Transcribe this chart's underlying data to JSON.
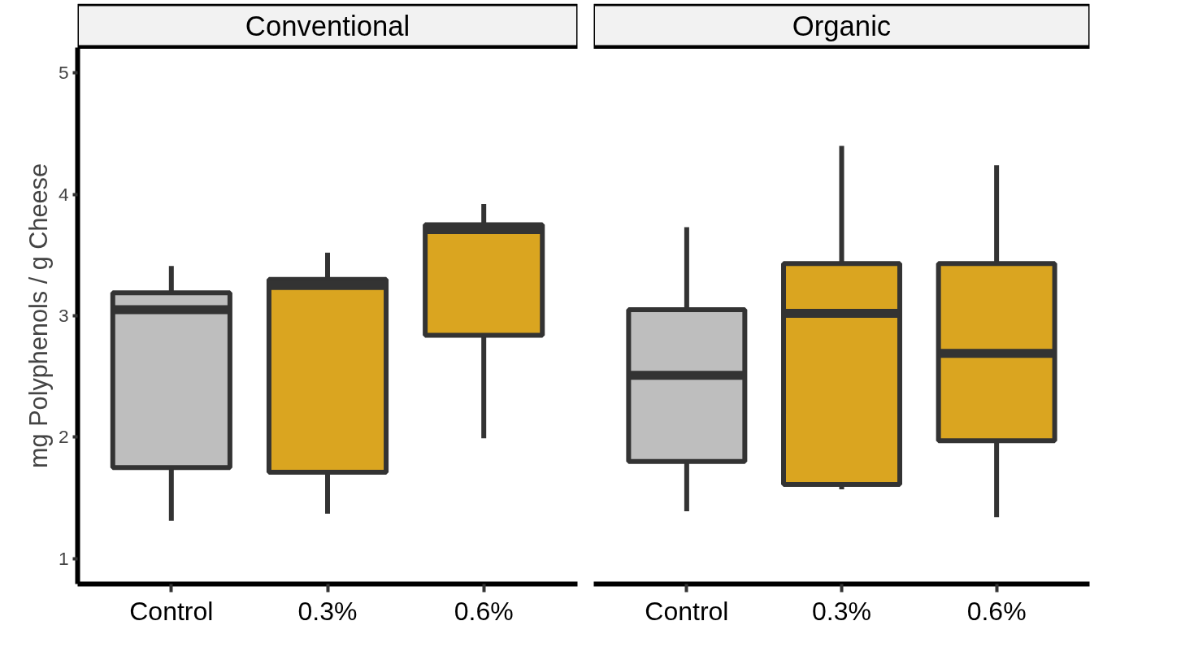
{
  "chart_data": [
    {
      "type": "box",
      "title": "Conventional",
      "ylabel": "mg Polyphenols / g Cheese",
      "categories": [
        "Control",
        "0.3%",
        "0.6%"
      ],
      "colors": [
        "#bebebe",
        "#daa520",
        "#daa520"
      ],
      "boxes": [
        {
          "low": 1.31,
          "q1": 1.75,
          "median": 3.05,
          "q3": 3.19,
          "high": 3.41
        },
        {
          "low": 1.37,
          "q1": 1.71,
          "median": 3.25,
          "q3": 3.3,
          "high": 3.52
        },
        {
          "low": 1.99,
          "q1": 2.84,
          "median": 3.71,
          "q3": 3.75,
          "high": 3.92
        }
      ],
      "ylim": [
        0.79,
        5.21
      ],
      "yticks": [
        1,
        2,
        3,
        4,
        5
      ],
      "grid": false
    },
    {
      "type": "box",
      "title": "Organic",
      "categories": [
        "Control",
        "0.3%",
        "0.6%"
      ],
      "colors": [
        "#bebebe",
        "#daa520",
        "#daa520"
      ],
      "boxes": [
        {
          "low": 1.39,
          "q1": 1.8,
          "median": 2.51,
          "q3": 3.05,
          "high": 3.73
        },
        {
          "low": 1.57,
          "q1": 1.61,
          "median": 3.02,
          "q3": 3.43,
          "high": 4.4
        },
        {
          "low": 1.34,
          "q1": 1.97,
          "median": 2.69,
          "q3": 3.43,
          "high": 4.24
        }
      ],
      "ylim": [
        0.79,
        5.21
      ],
      "yticks": [
        1,
        2,
        3,
        4,
        5
      ],
      "tick_labels": "x",
      "grid": false
    }
  ]
}
